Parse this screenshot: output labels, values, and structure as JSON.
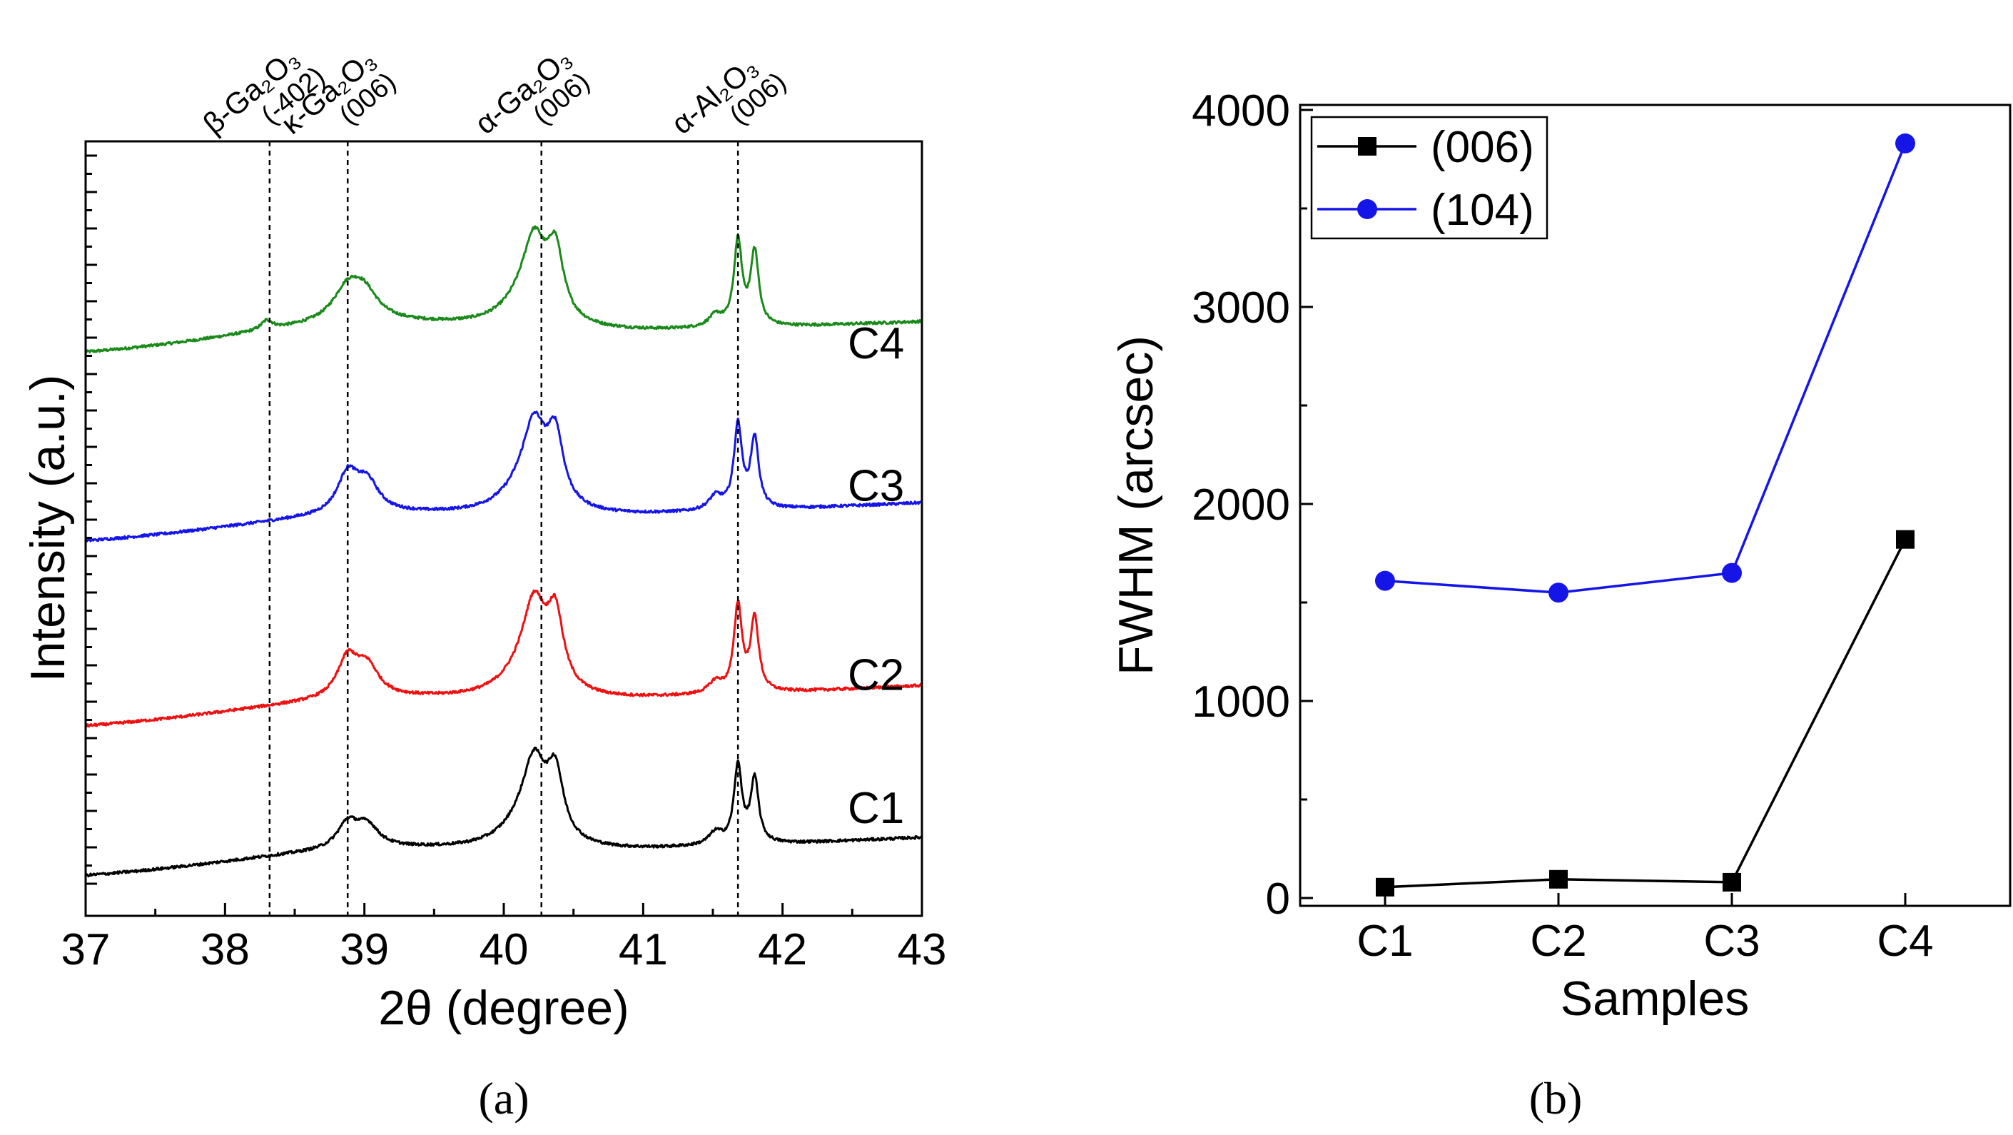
{
  "figure": {
    "caption_a": "(a)",
    "caption_b": "(b)"
  },
  "chart_data": [
    {
      "panel": "a",
      "type": "line",
      "title": "",
      "xlabel": "2θ (degree)",
      "ylabel": "Intensity (a.u.)",
      "xlim": [
        37,
        43
      ],
      "xticks": [
        37,
        38,
        39,
        40,
        41,
        42,
        43
      ],
      "ylim": [
        0,
        100
      ],
      "reference_lines": [
        {
          "x": 38.32,
          "label_main": "β-Ga₂O₃",
          "label_index": "(-402)"
        },
        {
          "x": 38.88,
          "label_main": "κ-Ga₂O₃",
          "label_index": "(006)"
        },
        {
          "x": 40.27,
          "label_main": "α-Ga₂O₃",
          "label_index": "(006)"
        },
        {
          "x": 41.68,
          "label_main": "α-Al₂O₃",
          "label_index": "(006)"
        }
      ],
      "series": [
        {
          "name": "C4",
          "color": "#1a8a1a",
          "offset": 72.5,
          "slope": 0.7,
          "bulge": 2.5,
          "peaks": [
            [
              38.3,
              0.05,
              1.2
            ],
            [
              38.88,
              0.13,
              4.2
            ],
            [
              39.0,
              0.12,
              3.2
            ],
            [
              40.22,
              0.1,
              9.0
            ],
            [
              40.37,
              0.07,
              8.5
            ],
            [
              40.15,
              0.2,
              3.0
            ],
            [
              41.68,
              0.035,
              11.0
            ],
            [
              41.8,
              0.035,
              9.5
            ],
            [
              41.52,
              0.06,
              1.5
            ]
          ]
        },
        {
          "name": "C3",
          "color": "#1515e8",
          "offset": 48.2,
          "slope": 0.85,
          "bulge": 1.8,
          "peaks": [
            [
              38.88,
              0.09,
              5.0
            ],
            [
              39.02,
              0.1,
              3.8
            ],
            [
              40.22,
              0.1,
              9.2
            ],
            [
              40.37,
              0.07,
              8.5
            ],
            [
              40.15,
              0.2,
              3.0
            ],
            [
              41.68,
              0.035,
              10.8
            ],
            [
              41.8,
              0.035,
              9.0
            ],
            [
              41.52,
              0.06,
              1.8
            ]
          ]
        },
        {
          "name": "C2",
          "color": "#ee1111",
          "offset": 24.3,
          "slope": 0.9,
          "bulge": 1.8,
          "peaks": [
            [
              38.88,
              0.09,
              5.0
            ],
            [
              39.02,
              0.1,
              3.8
            ],
            [
              40.22,
              0.1,
              9.8
            ],
            [
              40.37,
              0.07,
              9.0
            ],
            [
              40.15,
              0.2,
              3.0
            ],
            [
              41.68,
              0.035,
              11.2
            ],
            [
              41.8,
              0.035,
              9.4
            ],
            [
              41.52,
              0.06,
              1.5
            ]
          ]
        },
        {
          "name": "C1",
          "color": "#000000",
          "offset": 5.0,
          "slope": 0.85,
          "bulge": 1.8,
          "peaks": [
            [
              38.88,
              0.09,
              3.2
            ],
            [
              39.02,
              0.1,
              2.8
            ],
            [
              40.22,
              0.1,
              9.0
            ],
            [
              40.37,
              0.07,
              8.2
            ],
            [
              40.15,
              0.2,
              3.0
            ],
            [
              41.68,
              0.035,
              10.0
            ],
            [
              41.8,
              0.035,
              8.2
            ],
            [
              41.52,
              0.06,
              1.6
            ]
          ]
        }
      ]
    },
    {
      "panel": "b",
      "type": "line",
      "title": "",
      "xlabel": "Samples",
      "ylabel": "FWHM (arcsec)",
      "categories": [
        "C1",
        "C2",
        "C3",
        "C4"
      ],
      "ylim": [
        0,
        4000
      ],
      "yticks": [
        0,
        1000,
        2000,
        3000,
        4000
      ],
      "legend_position": "top-left",
      "series": [
        {
          "name": "(006)",
          "marker": "square",
          "color": "#000000",
          "values": [
            55,
            95,
            80,
            1820
          ]
        },
        {
          "name": "(104)",
          "marker": "circle",
          "color": "#1515e8",
          "values": [
            1610,
            1550,
            1650,
            3830
          ]
        }
      ]
    }
  ]
}
